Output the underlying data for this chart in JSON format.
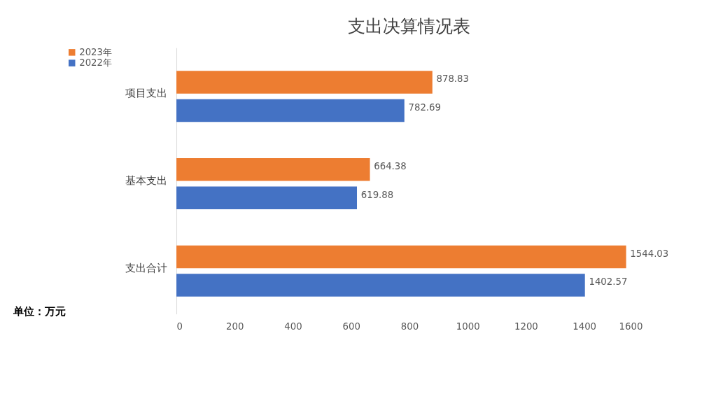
{
  "chart_data": {
    "type": "bar",
    "orientation": "horizontal",
    "title": "支出决算情况表",
    "categories": [
      "项目支出",
      "基本支出",
      "支出合计"
    ],
    "series": [
      {
        "name": "2023年",
        "color": "#ed7d31",
        "values": [
          878.83,
          664.38,
          1544.03
        ]
      },
      {
        "name": "2022年",
        "color": "#4472c4",
        "values": [
          782.69,
          619.88,
          1402.57
        ]
      }
    ],
    "xlim": [
      0,
      1600
    ],
    "xticks": [
      0,
      200,
      400,
      600,
      800,
      1000,
      1200,
      1400,
      1600
    ],
    "grid": false,
    "legend": "left",
    "data_labels": true,
    "annotations": [
      "单位：万元"
    ]
  }
}
